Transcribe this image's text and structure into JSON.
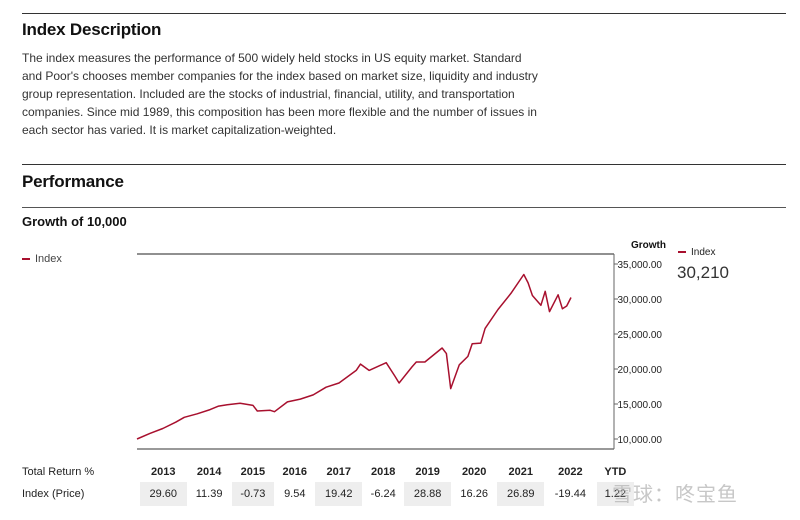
{
  "index_description": {
    "heading": "Index Description",
    "text": "The index measures the performance of 500 widely held stocks in US equity market. Standard and Poor's chooses member companies for the index based on market size, liquidity and industry group representation. Included are the stocks of industrial, financial, utility, and transportation companies. Since mid 1989, this composition has been more flexible and the number of issues in each sector has varied. It is market capitalization-weighted."
  },
  "performance": {
    "heading": "Performance",
    "subheading": "Growth of 10,000",
    "legend_left": "Index",
    "legend_right_label": "Index",
    "legend_right_value": "30,210",
    "growth_label": "Growth"
  },
  "chart_data": {
    "type": "line",
    "title": "Growth of 10,000",
    "ylabel": "Growth",
    "ylim": [
      10000,
      35000
    ],
    "yticks": [
      "35,000.00",
      "30,000.00",
      "25,000.00",
      "20,000.00",
      "15,000.00",
      "10,000.00"
    ],
    "ytick_values": [
      35000,
      30000,
      25000,
      20000,
      15000,
      10000
    ],
    "line_color": "#a8102e",
    "grid": false,
    "legend": "top-left",
    "series": [
      {
        "name": "Index",
        "x": [
          2012.9,
          2013.2,
          2013.5,
          2013.8,
          2014.0,
          2014.3,
          2014.6,
          2014.8,
          2015.0,
          2015.3,
          2015.6,
          2015.7,
          2016.0,
          2016.1,
          2016.4,
          2016.7,
          2017.0,
          2017.3,
          2017.6,
          2018.0,
          2018.1,
          2018.3,
          2018.7,
          2018.9,
          2019.0,
          2019.3,
          2019.4,
          2019.6,
          2019.9,
          2020.0,
          2020.1,
          2020.2,
          2020.4,
          2020.6,
          2020.7,
          2020.9,
          2021.0,
          2021.3,
          2021.6,
          2021.9,
          2022.0,
          2022.1,
          2022.3,
          2022.4,
          2022.5,
          2022.7,
          2022.8,
          2022.9,
          2023.0
        ],
        "values": [
          10000,
          10800,
          11500,
          12400,
          13100,
          13600,
          14200,
          14700,
          14900,
          15100,
          14800,
          14000,
          14100,
          13900,
          15300,
          15700,
          16300,
          17400,
          18000,
          19800,
          20700,
          19800,
          20900,
          19000,
          18000,
          20300,
          21000,
          21000,
          22500,
          23000,
          22200,
          17200,
          20600,
          21800,
          23600,
          23700,
          25800,
          28500,
          30800,
          33500,
          32300,
          30500,
          29100,
          31100,
          28200,
          30600,
          28600,
          29000,
          30210
        ]
      }
    ]
  },
  "returns_table": {
    "row_label": "Total Return %",
    "columns": [
      "2013",
      "2014",
      "2015",
      "2016",
      "2017",
      "2018",
      "2019",
      "2020",
      "2021",
      "2022",
      "YTD"
    ],
    "rows": [
      {
        "label": "Index (Price)",
        "values": [
          "29.60",
          "11.39",
          "-0.73",
          "9.54",
          "19.42",
          "-6.24",
          "28.88",
          "16.26",
          "26.89",
          "-19.44",
          "1.22"
        ]
      }
    ]
  },
  "watermark": "雪球：咚宝鱼"
}
